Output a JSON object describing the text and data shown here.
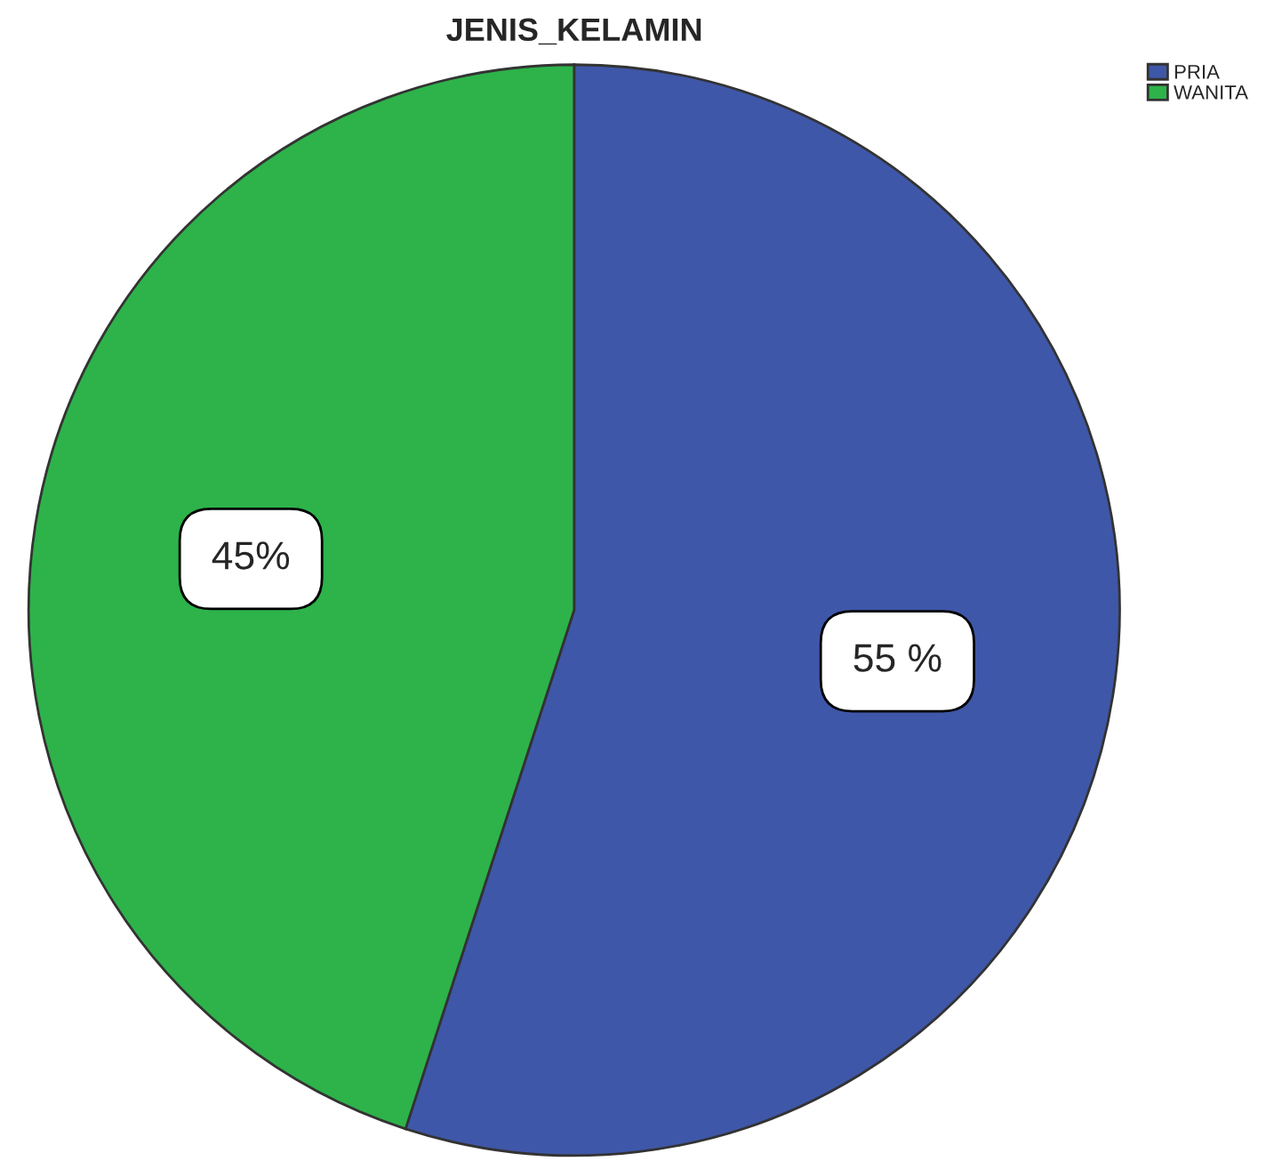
{
  "chart_data": {
    "type": "pie",
    "title": "JENIS_KELAMIN",
    "categories": [
      "PRIA",
      "WANITA"
    ],
    "values": [
      55,
      45
    ],
    "colors": [
      "#3f57a8",
      "#2db34a"
    ],
    "value_labels": [
      "55 %",
      "45%"
    ],
    "legend": "top right"
  }
}
